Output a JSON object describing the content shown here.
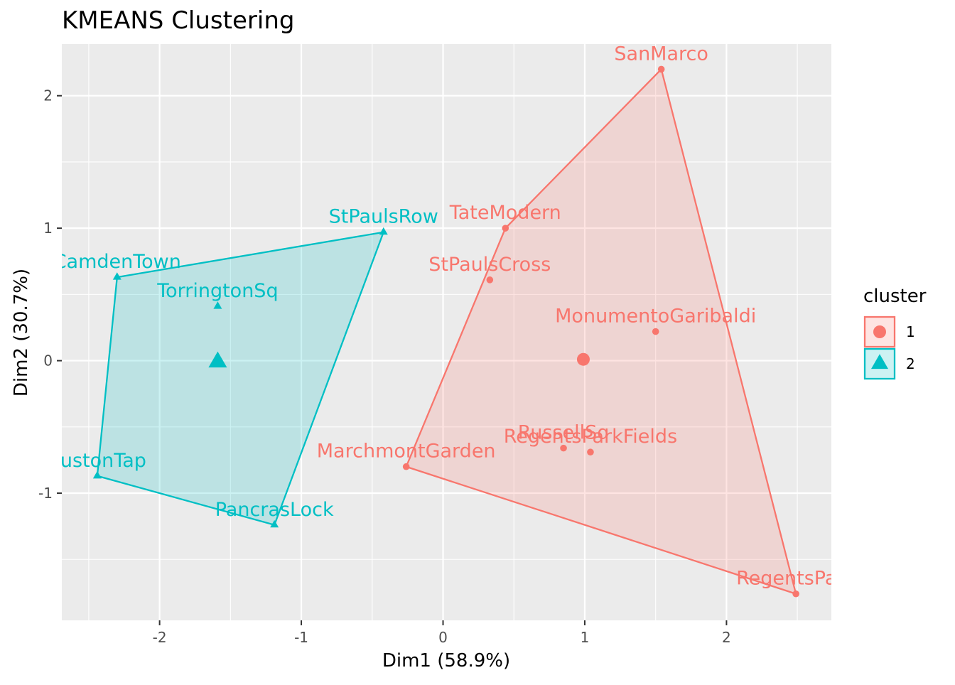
{
  "chart_data": {
    "type": "scatter",
    "title": "KMEANS Clustering",
    "xlabel": "Dim1 (58.9%)",
    "ylabel": "Dim2 (30.7%)",
    "xlim": [
      -2.69,
      2.74
    ],
    "ylim": [
      -1.96,
      2.39
    ],
    "xticks": [
      -2,
      -1,
      0,
      1,
      2
    ],
    "yticks": [
      -1,
      0,
      1,
      2
    ],
    "grid": true,
    "legend": {
      "title": "cluster",
      "position": "right"
    },
    "colors": {
      "1": "#F8766D",
      "2": "#00BFC4",
      "panel": "#EBEBEB",
      "grid": "#FFFFFF"
    },
    "series": [
      {
        "name": "1",
        "marker": "circle",
        "points": [
          {
            "label": "SanMarco",
            "x": 1.54,
            "y": 2.2
          },
          {
            "label": "TateModern",
            "x": 0.44,
            "y": 1.0
          },
          {
            "label": "StPaulsCross",
            "x": 0.33,
            "y": 0.61
          },
          {
            "label": "MonumentoGaribaldi",
            "x": 1.5,
            "y": 0.22
          },
          {
            "label": "RussellSq",
            "x": 0.85,
            "y": -0.66
          },
          {
            "label": "RegentsParkFields",
            "x": 1.04,
            "y": -0.69
          },
          {
            "label": "MarchmontGarden",
            "x": -0.26,
            "y": -0.8
          },
          {
            "label": "RegentsPark",
            "x": 2.49,
            "y": -1.76
          }
        ],
        "hull": [
          "SanMarco",
          "RegentsPark",
          "MarchmontGarden",
          "TateModern"
        ],
        "centroid": {
          "x": 0.99,
          "y": 0.01
        }
      },
      {
        "name": "2",
        "marker": "triangle",
        "points": [
          {
            "label": "StPaulsRow",
            "x": -0.42,
            "y": 0.97
          },
          {
            "label": "CamdenTown",
            "x": -2.3,
            "y": 0.63
          },
          {
            "label": "TorringtonSq",
            "x": -1.59,
            "y": 0.41
          },
          {
            "label": "EustonTap",
            "x": -2.44,
            "y": -0.87
          },
          {
            "label": "PancrasLock",
            "x": -1.19,
            "y": -1.24
          }
        ],
        "hull": [
          "StPaulsRow",
          "CamdenTown",
          "EustonTap",
          "PancrasLock"
        ],
        "centroid": {
          "x": -1.59,
          "y": -0.01
        }
      }
    ]
  }
}
